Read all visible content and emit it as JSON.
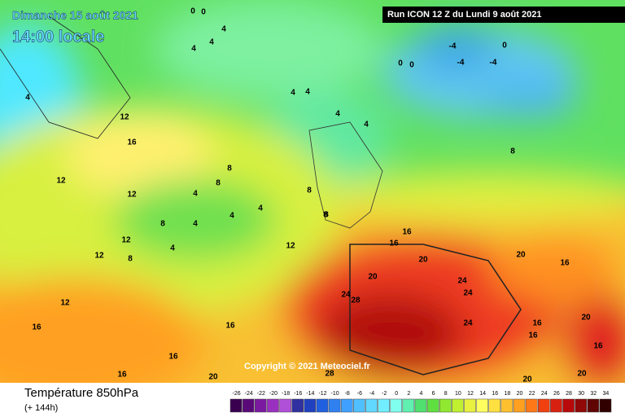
{
  "header": {
    "date": "Dimanche 15 août 2021",
    "time": "14:00 locale",
    "run": "Run ICON 12 Z du Lundi 9 août 2021"
  },
  "map_labels": [
    "0",
    "0",
    "4",
    "4",
    "4",
    "4",
    "0",
    "-4",
    "-4",
    "-4",
    "0",
    "0",
    "4",
    "4",
    "4",
    "4",
    "12",
    "16",
    "12",
    "12",
    "4",
    "8",
    "8",
    "4",
    "4",
    "8",
    "4",
    "8",
    "12",
    "12",
    "8",
    "16",
    "16",
    "16",
    "20",
    "20",
    "20",
    "24",
    "28",
    "24",
    "24",
    "24",
    "16",
    "16",
    "20",
    "20",
    "16",
    "16",
    "12",
    "16",
    "16",
    "20",
    "20",
    "28",
    "4",
    "8",
    "8",
    "8",
    "16",
    "12"
  ],
  "copyright": "Copyright © 2021 Meteociel.fr",
  "footer": {
    "title": "Température 850hPa",
    "subtitle": "(+ 144h)"
  },
  "legend": {
    "ticks": [
      -26,
      -24,
      -22,
      -20,
      -18,
      -16,
      -14,
      -12,
      -10,
      -8,
      -6,
      -4,
      -2,
      0,
      2,
      4,
      6,
      8,
      10,
      12,
      14,
      16,
      18,
      20,
      22,
      24,
      26,
      28,
      30,
      32,
      34
    ],
    "colors": [
      "#3a0050",
      "#5a0a78",
      "#7a1aa0",
      "#9a30c0",
      "#b050d8",
      "#3030a0",
      "#2040c0",
      "#2060e0",
      "#3080f0",
      "#40a0ff",
      "#50c0ff",
      "#60d8ff",
      "#70eeff",
      "#80ffee",
      "#60f0b0",
      "#50e070",
      "#60e040",
      "#90e830",
      "#c0f030",
      "#e8f040",
      "#ffff60",
      "#ffe040",
      "#ffc030",
      "#ffa020",
      "#ff7818",
      "#f04010",
      "#d82010",
      "#b80a0a",
      "#900808",
      "#600404",
      "#300000"
    ]
  }
}
